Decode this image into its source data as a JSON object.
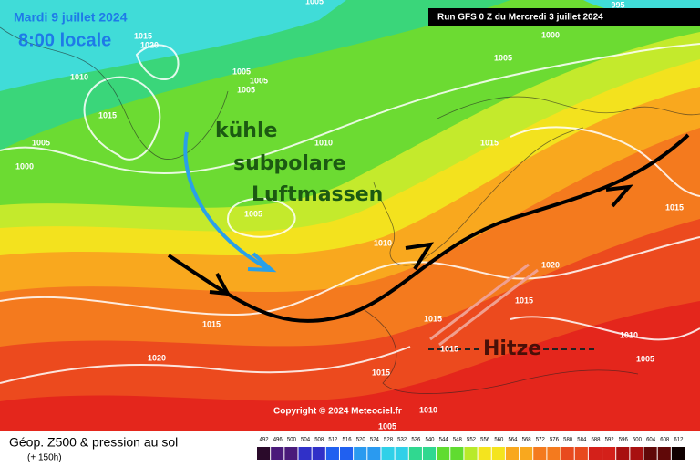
{
  "header": {
    "date": "Mardi 9 juillet 2024",
    "time": "8:00 locale",
    "run": "Run GFS 0 Z du Mercredi 3 juillet 2024"
  },
  "annotations": {
    "cold": [
      "kühle",
      "subpolare",
      "Luftmassen"
    ],
    "heat": "Hitze"
  },
  "isobars": [
    1005,
    995,
    1015,
    1020,
    1000,
    1010,
    1005,
    1005,
    1005,
    1005,
    1015,
    1005,
    1010,
    1015,
    1000,
    1005,
    1015,
    1010,
    1020,
    1015,
    1015,
    1015,
    1015,
    1010,
    1020,
    1005,
    1015,
    1010,
    1005
  ],
  "copyright": "Copyright © 2024 Meteociel.fr",
  "legend": {
    "title": "Géop. Z500 & pression au sol",
    "lead": "(+ 150h)",
    "scale": [
      492,
      496,
      500,
      504,
      508,
      512,
      516,
      520,
      524,
      528,
      532,
      536,
      540,
      544,
      548,
      552,
      556,
      560,
      564,
      568,
      572,
      576,
      580,
      584,
      588,
      592,
      596,
      600,
      604,
      608,
      612
    ]
  }
}
